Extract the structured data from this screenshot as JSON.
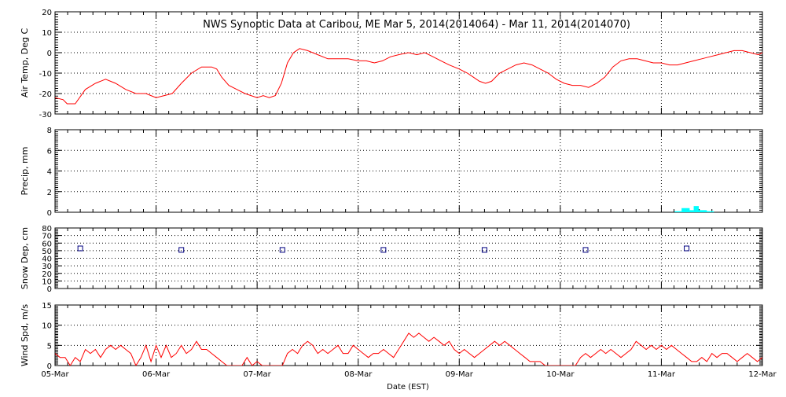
{
  "title": "NWS Synoptic Data at Caribou, ME   Mar  5, 2014(2014064) - Mar 11, 2014(2014070)",
  "x_axis": {
    "label": "Date (EST)",
    "tick_labels": [
      "05-Mar",
      "06-Mar",
      "07-Mar",
      "08-Mar",
      "09-Mar",
      "10-Mar",
      "11-Mar",
      "12-Mar"
    ],
    "range_days": [
      0,
      7
    ]
  },
  "colors": {
    "temp_line": "#ff0000",
    "wind_line": "#ff0000",
    "precip_bars": "#00ffff",
    "snow_markers": "#000080",
    "grid": "#000000"
  },
  "chart_data": [
    {
      "type": "line",
      "panel": "air-temp",
      "ylabel": "Air Temp, Deg C",
      "ylim": [
        -30,
        20
      ],
      "yticks": [
        -30,
        -20,
        -10,
        0,
        10,
        20
      ],
      "x_units": "days since 05-Mar 00:00 EST",
      "series": [
        {
          "x": [
            0,
            0.08,
            0.12,
            0.16,
            0.2,
            0.3,
            0.4,
            0.5,
            0.6,
            0.7,
            0.8,
            0.9,
            0.95,
            1.0,
            1.08,
            1.16,
            1.25,
            1.35,
            1.45,
            1.55,
            1.6,
            1.65,
            1.72,
            1.8,
            1.88,
            1.94,
            2.0,
            2.06,
            2.12,
            2.18,
            2.24,
            2.3,
            2.36,
            2.42,
            2.5,
            2.6,
            2.7,
            2.8,
            2.9,
            3.0,
            3.08,
            3.16,
            3.24,
            3.32,
            3.4,
            3.5,
            3.58,
            3.66,
            3.74,
            3.82,
            3.9,
            4.0,
            4.08,
            4.14,
            4.2,
            4.26,
            4.32,
            4.4,
            4.48,
            4.56,
            4.64,
            4.72,
            4.8,
            4.88,
            4.96,
            5.04,
            5.12,
            5.2,
            5.28,
            5.36,
            5.44,
            5.52,
            5.6,
            5.68,
            5.76,
            5.84,
            5.92,
            6.0,
            6.08,
            6.16,
            6.24,
            6.32,
            6.4,
            6.48,
            6.56,
            6.64,
            6.72,
            6.8,
            6.88,
            6.96,
            7.0
          ],
          "y": [
            -22,
            -23,
            -25,
            -25,
            -25,
            -18,
            -15,
            -13,
            -15,
            -18,
            -20,
            -20,
            -21,
            -22,
            -21,
            -20,
            -15,
            -10,
            -7,
            -7,
            -8,
            -12,
            -16,
            -18,
            -20,
            -21,
            -22,
            -21,
            -22,
            -21,
            -15,
            -5,
            0,
            2,
            1,
            -1,
            -3,
            -3,
            -3,
            -4,
            -4,
            -5,
            -4,
            -2,
            -1,
            0,
            -1,
            0,
            -2,
            -4,
            -6,
            -8,
            -10,
            -12,
            -14,
            -15,
            -14,
            -10,
            -8,
            -6,
            -5,
            -6,
            -8,
            -10,
            -13,
            -15,
            -16,
            -16,
            -17,
            -15,
            -12,
            -7,
            -4,
            -3,
            -3,
            -4,
            -5,
            -5,
            -6,
            -6,
            -5,
            -4,
            -3,
            -2,
            -1,
            0,
            1,
            1,
            0,
            -1,
            0
          ]
        }
      ]
    },
    {
      "type": "bar",
      "panel": "precip",
      "ylabel": "Precip, mm",
      "ylim": [
        0,
        8
      ],
      "yticks": [
        0,
        2,
        4,
        6,
        8
      ],
      "x_units": "days since 05-Mar 00:00 EST",
      "bars": [
        {
          "x0": 6.13,
          "x1": 6.2,
          "value": 0.1
        },
        {
          "x0": 6.2,
          "x1": 6.28,
          "value": 0.4
        },
        {
          "x0": 6.28,
          "x1": 6.32,
          "value": 0.2
        },
        {
          "x0": 6.32,
          "x1": 6.37,
          "value": 0.6
        },
        {
          "x0": 6.37,
          "x1": 6.45,
          "value": 0.2
        },
        {
          "x0": 6.45,
          "x1": 6.52,
          "value": 0.1
        }
      ]
    },
    {
      "type": "scatter",
      "panel": "snow-depth",
      "ylabel": "Snow Dep, cm",
      "ylim": [
        0,
        80
      ],
      "yticks": [
        0,
        10,
        20,
        30,
        40,
        50,
        60,
        70,
        80
      ],
      "x_units": "days since 05-Mar 00:00 EST",
      "series": [
        {
          "x": [
            0.25,
            1.25,
            2.25,
            3.25,
            4.25,
            5.25,
            6.25
          ],
          "y": [
            53,
            51,
            51,
            51,
            51,
            51,
            53
          ]
        }
      ]
    },
    {
      "type": "line",
      "panel": "wind-speed",
      "ylabel": "Wind Spd, m/s",
      "ylim": [
        0,
        15
      ],
      "yticks": [
        0,
        5,
        10,
        15
      ],
      "x_units": "days since 05-Mar 00:00 EST",
      "series": [
        {
          "x": [
            0,
            0.05,
            0.1,
            0.15,
            0.2,
            0.25,
            0.3,
            0.35,
            0.4,
            0.45,
            0.5,
            0.55,
            0.6,
            0.65,
            0.7,
            0.75,
            0.8,
            0.85,
            0.9,
            0.95,
            1.0,
            1.05,
            1.1,
            1.15,
            1.2,
            1.25,
            1.3,
            1.35,
            1.4,
            1.45,
            1.5,
            1.55,
            1.6,
            1.65,
            1.7,
            1.75,
            1.8,
            1.85,
            1.9,
            1.95,
            2.0,
            2.05,
            2.1,
            2.15,
            2.2,
            2.25,
            2.3,
            2.35,
            2.4,
            2.45,
            2.5,
            2.55,
            2.6,
            2.65,
            2.7,
            2.75,
            2.8,
            2.85,
            2.9,
            2.95,
            3.0,
            3.05,
            3.1,
            3.15,
            3.2,
            3.25,
            3.3,
            3.35,
            3.4,
            3.45,
            3.5,
            3.55,
            3.6,
            3.65,
            3.7,
            3.75,
            3.8,
            3.85,
            3.9,
            3.95,
            4.0,
            4.05,
            4.1,
            4.15,
            4.2,
            4.25,
            4.3,
            4.35,
            4.4,
            4.45,
            4.5,
            4.55,
            4.6,
            4.65,
            4.7,
            4.75,
            4.8,
            4.85,
            4.9,
            4.95,
            5.0,
            5.05,
            5.1,
            5.15,
            5.2,
            5.25,
            5.3,
            5.35,
            5.4,
            5.45,
            5.5,
            5.55,
            5.6,
            5.65,
            5.7,
            5.75,
            5.8,
            5.85,
            5.9,
            5.95,
            6.0,
            6.05,
            6.1,
            6.15,
            6.2,
            6.25,
            6.3,
            6.35,
            6.4,
            6.45,
            6.5,
            6.55,
            6.6,
            6.65,
            6.7,
            6.75,
            6.8,
            6.85,
            6.9,
            6.95,
            7.0
          ],
          "y": [
            3,
            2,
            2,
            0,
            2,
            1,
            4,
            3,
            4,
            2,
            4,
            5,
            4,
            5,
            4,
            3,
            0,
            2,
            5,
            1,
            5,
            2,
            5,
            2,
            3,
            5,
            3,
            4,
            6,
            4,
            4,
            3,
            2,
            1,
            0,
            0,
            0,
            0,
            2,
            0,
            1,
            0,
            0,
            0,
            0,
            0,
            3,
            4,
            3,
            5,
            6,
            5,
            3,
            4,
            3,
            4,
            5,
            3,
            3,
            5,
            4,
            3,
            2,
            3,
            3,
            4,
            3,
            2,
            4,
            6,
            8,
            7,
            8,
            7,
            6,
            7,
            6,
            5,
            6,
            4,
            3,
            4,
            3,
            2,
            3,
            4,
            5,
            6,
            5,
            6,
            5,
            4,
            3,
            2,
            1,
            1,
            1,
            0,
            0,
            0,
            0,
            0,
            0,
            0,
            2,
            3,
            2,
            3,
            4,
            3,
            4,
            3,
            2,
            3,
            4,
            6,
            5,
            4,
            5,
            4,
            5,
            4,
            5,
            4,
            3,
            2,
            1,
            1,
            2,
            1,
            3,
            2,
            3,
            3,
            2,
            1,
            2,
            3,
            2,
            1,
            2
          ]
        }
      ]
    }
  ]
}
